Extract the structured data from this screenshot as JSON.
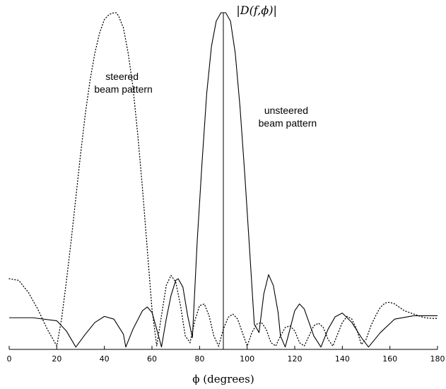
{
  "chart_data": {
    "type": "line",
    "title": "",
    "xlabel": "ϕ (degrees)",
    "ylabel": "",
    "xlim": [
      0,
      180
    ],
    "ylim": [
      0,
      1
    ],
    "xticks": [
      0,
      20,
      40,
      60,
      80,
      100,
      120,
      140,
      160,
      180
    ],
    "grid": false,
    "legend": "none",
    "annotations": [
      {
        "text": "|D(f,ϕ)|",
        "x": 104,
        "y": 1.0
      },
      {
        "lines": [
          "steered",
          "beam pattern"
        ],
        "x": 48,
        "y": 0.8
      },
      {
        "lines": [
          "unsteered",
          "beam pattern"
        ],
        "x": 117,
        "y": 0.7
      }
    ],
    "marker_line": {
      "x": 90,
      "y": 1.0
    },
    "series": [
      {
        "style": "solid",
        "color": "#000000",
        "x": [
          0,
          10,
          20,
          24,
          28,
          32,
          36,
          40,
          44,
          48,
          49,
          52,
          56,
          58,
          60,
          62,
          64,
          66,
          68,
          70,
          71,
          73,
          75,
          77,
          79,
          81,
          83,
          85,
          87,
          89,
          90,
          91,
          93,
          95,
          97,
          99,
          101,
          103,
          105,
          107,
          109,
          111,
          113,
          114,
          116,
          118,
          120,
          122,
          124,
          126,
          128,
          131,
          134,
          137,
          140,
          144,
          148,
          151,
          156,
          162,
          170,
          180
        ],
        "y": [
          0.094,
          0.094,
          0.085,
          0.055,
          0.007,
          0.045,
          0.08,
          0.098,
          0.09,
          0.045,
          0.007,
          0.06,
          0.115,
          0.126,
          0.11,
          0.06,
          0.007,
          0.09,
          0.16,
          0.205,
          0.21,
          0.185,
          0.1,
          0.035,
          0.32,
          0.55,
          0.76,
          0.9,
          0.975,
          1.0,
          1.0,
          1.0,
          0.975,
          0.88,
          0.72,
          0.52,
          0.3,
          0.075,
          0.05,
          0.165,
          0.222,
          0.19,
          0.11,
          0.04,
          0.007,
          0.06,
          0.115,
          0.135,
          0.12,
          0.08,
          0.04,
          0.007,
          0.06,
          0.097,
          0.108,
          0.08,
          0.035,
          0.007,
          0.05,
          0.09,
          0.1,
          0.1
        ]
      },
      {
        "style": "dotted",
        "color": "#000000",
        "x": [
          0,
          4,
          8,
          12,
          16,
          20,
          22,
          24,
          26,
          28,
          30,
          32,
          34,
          36,
          38,
          40,
          42,
          44,
          45,
          46,
          48,
          50,
          52,
          54,
          56,
          58,
          60,
          62,
          64,
          66,
          68,
          70,
          72,
          74,
          76,
          78,
          80,
          82,
          84,
          86,
          88,
          90,
          92,
          94,
          96,
          98,
          100,
          102,
          104,
          106,
          108,
          110,
          112,
          114,
          116,
          118,
          120,
          122,
          124,
          126,
          128,
          130,
          132,
          134,
          136,
          138,
          140,
          142,
          144,
          146,
          148,
          150,
          152,
          154,
          156,
          158,
          160,
          162,
          164,
          166,
          168,
          170,
          172,
          174,
          176,
          178,
          180
        ],
        "y": [
          0.21,
          0.205,
          0.17,
          0.12,
          0.06,
          0.01,
          0.09,
          0.2,
          0.32,
          0.45,
          0.58,
          0.7,
          0.8,
          0.88,
          0.94,
          0.98,
          0.995,
          1.0,
          1.0,
          0.99,
          0.955,
          0.88,
          0.78,
          0.64,
          0.48,
          0.3,
          0.12,
          0.01,
          0.1,
          0.19,
          0.22,
          0.2,
          0.13,
          0.04,
          0.02,
          0.085,
          0.13,
          0.135,
          0.1,
          0.04,
          0.01,
          0.06,
          0.095,
          0.105,
          0.09,
          0.05,
          0.01,
          0.05,
          0.075,
          0.08,
          0.06,
          0.02,
          0.01,
          0.04,
          0.065,
          0.07,
          0.055,
          0.02,
          0.01,
          0.04,
          0.07,
          0.078,
          0.065,
          0.03,
          0.01,
          0.045,
          0.08,
          0.098,
          0.09,
          0.06,
          0.015,
          0.03,
          0.07,
          0.1,
          0.125,
          0.138,
          0.14,
          0.135,
          0.125,
          0.115,
          0.11,
          0.105,
          0.1,
          0.095,
          0.093,
          0.092,
          0.092
        ]
      }
    ]
  }
}
